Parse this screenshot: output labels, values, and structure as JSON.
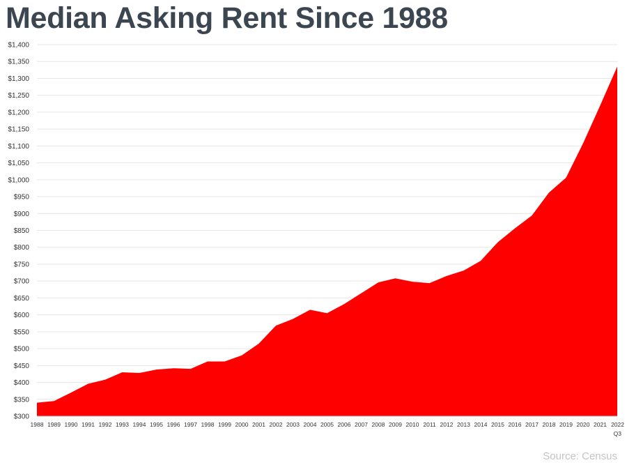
{
  "chart_data": {
    "type": "area",
    "title": "Median Asking Rent Since 1988",
    "xlabel": "",
    "ylabel": "",
    "source": "Source: Census",
    "color": "#ff0000",
    "grid": true,
    "legend": "none",
    "ylim": [
      300,
      1400
    ],
    "yticks": [
      300,
      350,
      400,
      450,
      500,
      550,
      600,
      650,
      700,
      750,
      800,
      850,
      900,
      950,
      1000,
      1050,
      1100,
      1150,
      1200,
      1250,
      1300,
      1350,
      1400
    ],
    "ytick_labels": [
      "$300",
      "$350",
      "$400",
      "$450",
      "$500",
      "$550",
      "$600",
      "$650",
      "$700",
      "$750",
      "$800",
      "$850",
      "$900",
      "$950",
      "$1,000",
      "$1,050",
      "$1,100",
      "$1,150",
      "$1,200",
      "$1,250",
      "$1,300",
      "$1,350",
      "$1,400"
    ],
    "categories": [
      "1988",
      "1989",
      "1990",
      "1991",
      "1992",
      "1993",
      "1994",
      "1995",
      "1996",
      "1997",
      "1998",
      "1999",
      "2000",
      "2001",
      "2002",
      "2003",
      "2004",
      "2005",
      "2006",
      "2007",
      "2008",
      "2009",
      "2010",
      "2011",
      "2012",
      "2013",
      "2014",
      "2015",
      "2016",
      "2017",
      "2018",
      "2019",
      "2020",
      "2021",
      "2022"
    ],
    "last_category_sublabel": "Q3",
    "values": [
      340,
      345,
      370,
      396,
      408,
      430,
      428,
      438,
      442,
      440,
      462,
      462,
      480,
      515,
      568,
      588,
      615,
      605,
      632,
      664,
      696,
      708,
      698,
      694,
      715,
      731,
      760,
      815,
      856,
      894,
      962,
      1006,
      1108,
      1220,
      1335
    ]
  }
}
